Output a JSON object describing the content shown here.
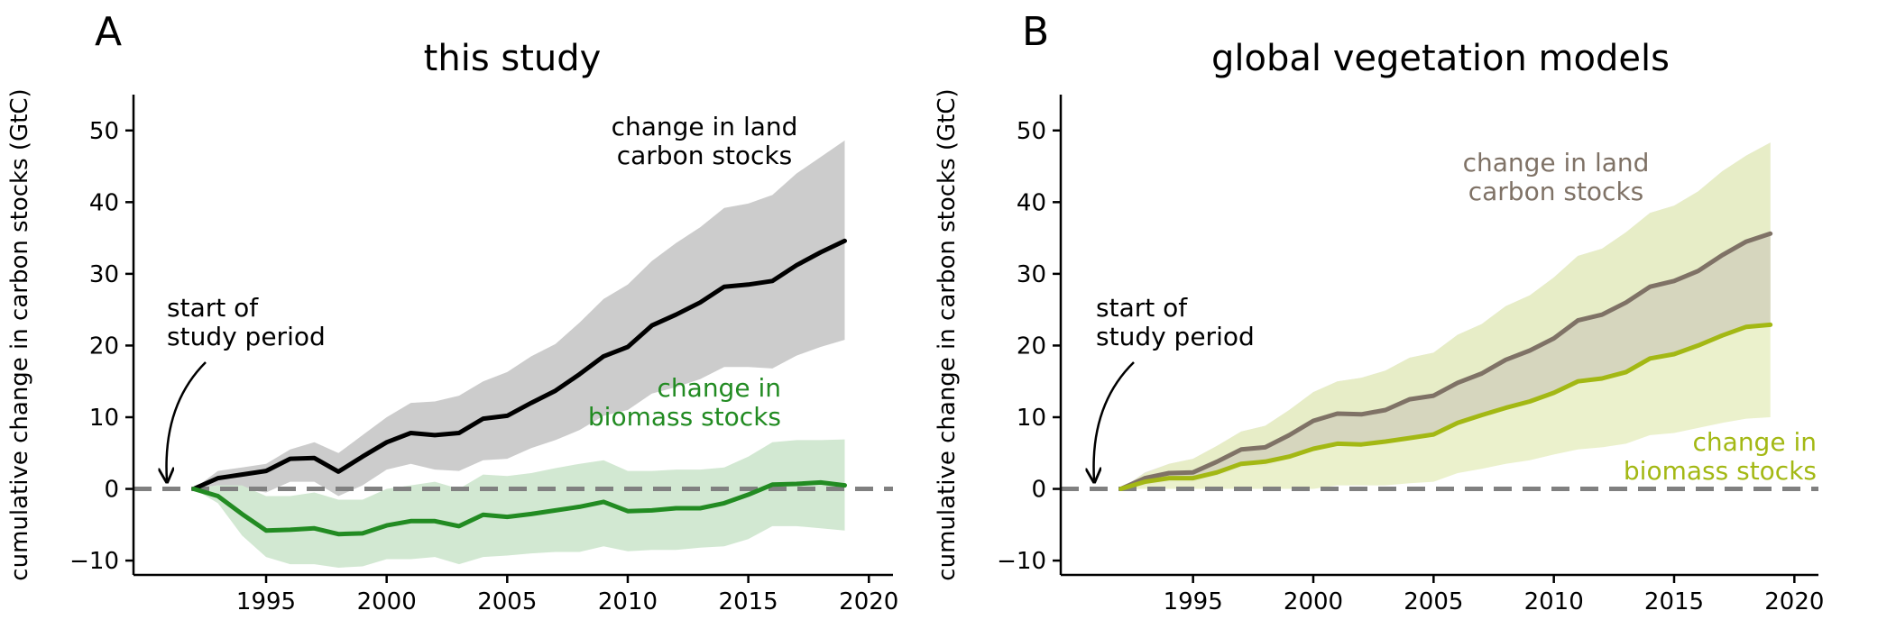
{
  "colors": {
    "land_a": "#000000",
    "land_a_band": "#cccccc",
    "biomass_a": "#228b22",
    "biomass_a_band": "#d2e8d2",
    "land_b": "#7f7266",
    "land_b_band": "#e3e1df",
    "biomass_b": "#a3b814",
    "biomass_b_band": "#e8eec3",
    "overlap_b": "#d6d6be",
    "zero_line": "#808080",
    "axis": "#000000"
  },
  "chart_data": [
    {
      "panel_letter": "A",
      "type": "line",
      "title": "this study",
      "xlabel": "",
      "ylabel": "cumulative change in carbon stocks (GtC)",
      "xlim": [
        1989.5,
        2021
      ],
      "ylim": [
        -12,
        55
      ],
      "xticks": [
        1995,
        2000,
        2005,
        2010,
        2015,
        2020
      ],
      "yticks": [
        -10,
        0,
        10,
        20,
        30,
        40,
        50
      ],
      "grid": false,
      "legend": "none",
      "x": [
        1992,
        1993,
        1994,
        1995,
        1996,
        1997,
        1998,
        1999,
        2000,
        2001,
        2002,
        2003,
        2004,
        2005,
        2006,
        2007,
        2008,
        2009,
        2010,
        2011,
        2012,
        2013,
        2014,
        2015,
        2016,
        2017,
        2018,
        2019
      ],
      "series": [
        {
          "name": "change in land carbon stocks",
          "color_key": "land_a",
          "band_color_key": "land_a_band",
          "values": [
            0,
            1.5,
            2,
            2.5,
            4.2,
            4.3,
            2.4,
            4.5,
            6.5,
            7.8,
            7.5,
            7.8,
            9.8,
            10.2,
            12.0,
            13.7,
            16.0,
            18.5,
            19.8,
            22.8,
            24.3,
            26.0,
            28.2,
            28.5,
            29.0,
            31.2,
            33.0,
            34.6
          ],
          "lower": [
            0,
            0.5,
            0,
            -0.5,
            1,
            1,
            -1,
            0.5,
            2.7,
            3.5,
            2.7,
            2.5,
            4,
            4.2,
            5.7,
            6.8,
            8.2,
            10.2,
            11.0,
            13.3,
            14.2,
            15.3,
            17.0,
            17.0,
            16.8,
            18.6,
            19.8,
            20.8
          ],
          "upper": [
            0,
            2.5,
            3,
            3.5,
            5.5,
            6.5,
            5.0,
            7.5,
            10.0,
            12.0,
            12.2,
            13.0,
            15.0,
            16.3,
            18.5,
            20.2,
            23.2,
            26.5,
            28.5,
            31.8,
            34.3,
            36.5,
            39.2,
            39.8,
            41.0,
            44.0,
            46.3,
            48.6
          ],
          "label_lines": [
            "change in land",
            "carbon stocks"
          ]
        },
        {
          "name": "change in biomass stocks",
          "color_key": "biomass_a",
          "band_color_key": "biomass_a_band",
          "values": [
            0,
            -1,
            -3.5,
            -5.8,
            -5.7,
            -5.5,
            -6.3,
            -6.2,
            -5.1,
            -4.5,
            -4.5,
            -5.2,
            -3.6,
            -3.9,
            -3.5,
            -3.0,
            -2.5,
            -1.8,
            -3.1,
            -3.0,
            -2.7,
            -2.7,
            -2.0,
            -0.8,
            0.6,
            0.7,
            0.9,
            0.5
          ],
          "lower": [
            0,
            -2,
            -6.5,
            -9.5,
            -10.5,
            -10.5,
            -11,
            -10.8,
            -9.8,
            -9.8,
            -9.5,
            -10.5,
            -9.5,
            -9.3,
            -9.0,
            -8.8,
            -8.8,
            -8.0,
            -8.7,
            -8.5,
            -8.5,
            -8.2,
            -8.0,
            -7.0,
            -5.2,
            -5.2,
            -5.5,
            -5.8
          ],
          "upper": [
            0,
            0.5,
            0.5,
            -1,
            -1,
            -0.5,
            -1.5,
            -1.5,
            0,
            0.5,
            1,
            0,
            2,
            1.8,
            2.2,
            2.9,
            3.5,
            4,
            2.5,
            2.5,
            2.7,
            2.7,
            3.0,
            4.5,
            6.5,
            6.8,
            6.8,
            6.9
          ],
          "label_lines": [
            "change in",
            "biomass stocks"
          ]
        }
      ],
      "annotation_lines": [
        "start of",
        "study period"
      ]
    },
    {
      "panel_letter": "B",
      "type": "line",
      "title": "global vegetation models",
      "xlabel": "",
      "ylabel": "cumulative change in carbon stocks (GtC)",
      "xlim": [
        1989.5,
        2021
      ],
      "ylim": [
        -12,
        55
      ],
      "xticks": [
        1995,
        2000,
        2005,
        2010,
        2015,
        2020
      ],
      "yticks": [
        -10,
        0,
        10,
        20,
        30,
        40,
        50
      ],
      "grid": false,
      "legend": "none",
      "x": [
        1992,
        1993,
        1994,
        1995,
        1996,
        1997,
        1998,
        1999,
        2000,
        2001,
        2002,
        2003,
        2004,
        2005,
        2006,
        2007,
        2008,
        2009,
        2010,
        2011,
        2012,
        2013,
        2014,
        2015,
        2016,
        2017,
        2018,
        2019
      ],
      "series": [
        {
          "name": "change in land carbon stocks",
          "color_key": "land_b",
          "band_color_key": "land_b_band",
          "values": [
            0,
            1.5,
            2.2,
            2.3,
            3.8,
            5.5,
            5.8,
            7.5,
            9.5,
            10.5,
            10.4,
            11.0,
            12.5,
            13.0,
            14.8,
            16.1,
            18.0,
            19.3,
            21.0,
            23.5,
            24.3,
            26.0,
            28.2,
            29.0,
            30.4,
            32.6,
            34.5,
            35.6
          ],
          "lower": [
            0,
            0.5,
            1,
            1,
            1.8,
            3,
            3.2,
            4.2,
            5.8,
            6.5,
            6.5,
            6.8,
            7.8,
            8.2,
            9.6,
            10.5,
            11.8,
            12.7,
            14.0,
            15.8,
            16.3,
            17.5,
            19.0,
            19.8,
            21.0,
            22.5,
            24.0,
            25.0
          ],
          "upper": [
            0,
            2.3,
            3.5,
            4.2,
            6.0,
            8.0,
            8.8,
            11.0,
            13.5,
            15.0,
            15.5,
            16.5,
            18.3,
            19.0,
            21.5,
            23.0,
            25.5,
            27.0,
            29.5,
            32.5,
            33.5,
            35.8,
            38.5,
            39.5,
            41.5,
            44.3,
            46.5,
            48.3
          ],
          "label_lines": [
            "change in land",
            "carbon stocks"
          ]
        },
        {
          "name": "change in biomass stocks",
          "color_key": "biomass_b",
          "band_color_key": "biomass_b_band",
          "values": [
            0,
            1,
            1.5,
            1.5,
            2.3,
            3.5,
            3.8,
            4.5,
            5.6,
            6.3,
            6.2,
            6.6,
            7.1,
            7.6,
            9.2,
            10.3,
            11.3,
            12.2,
            13.4,
            15.0,
            15.4,
            16.3,
            18.2,
            18.8,
            20.0,
            21.4,
            22.6,
            22.9
          ],
          "lower": [
            0,
            0,
            0,
            0,
            0,
            0,
            0,
            0,
            0,
            0.5,
            0.5,
            0.5,
            0.8,
            1.0,
            2.2,
            2.8,
            3.5,
            4.0,
            4.8,
            5.5,
            5.8,
            6.3,
            7.5,
            7.8,
            8.5,
            9.2,
            9.8,
            10.0
          ],
          "upper": [
            0,
            2.2,
            3.5,
            4.2,
            6.0,
            8.0,
            8.8,
            11.0,
            13.5,
            15.0,
            15.5,
            16.5,
            18.3,
            19.0,
            21.5,
            23.0,
            25.5,
            27.0,
            29.5,
            32.5,
            33.5,
            35.8,
            38.5,
            39.5,
            41.5,
            44.3,
            46.5,
            48.3
          ],
          "label_lines": [
            "change in",
            "biomass stocks"
          ]
        }
      ],
      "annotation_lines": [
        "start of",
        "study period"
      ]
    }
  ]
}
